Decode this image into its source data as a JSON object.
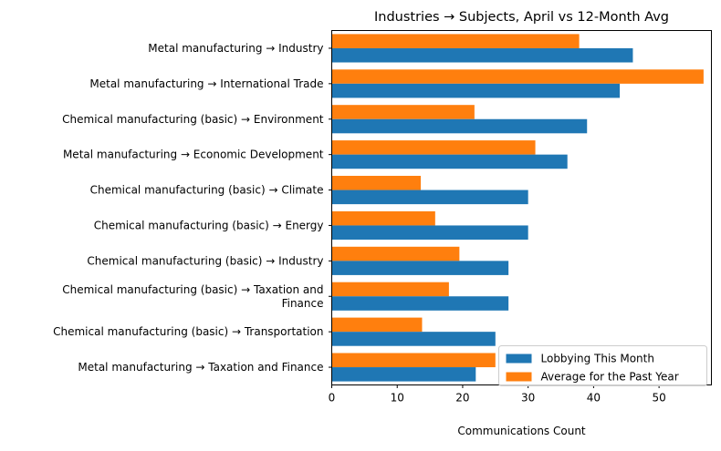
{
  "chart_data": {
    "type": "bar",
    "orientation": "horizontal",
    "title": "Industries → Subjects, April vs 12-Month Avg",
    "xlabel": "Communications Count",
    "ylabel": "",
    "xlim": [
      0,
      58
    ],
    "xticks": [
      0,
      10,
      20,
      30,
      40,
      50
    ],
    "grid": false,
    "legend_position": "lower right",
    "categories": [
      [
        "Metal manufacturing → Industry"
      ],
      [
        "Metal manufacturing → International Trade"
      ],
      [
        "Chemical manufacturing (basic) → Environment"
      ],
      [
        "Metal manufacturing → Economic Development"
      ],
      [
        "Chemical manufacturing (basic) → Climate"
      ],
      [
        "Chemical manufacturing (basic) → Energy"
      ],
      [
        "Chemical manufacturing (basic) → Industry"
      ],
      [
        "Chemical manufacturing (basic) → Taxation and",
        "Finance"
      ],
      [
        "Chemical manufacturing (basic) → Transportation"
      ],
      [
        "Metal manufacturing → Taxation and Finance"
      ]
    ],
    "series": [
      {
        "name": "Lobbying This Month",
        "color": "#1f77b4",
        "values": [
          46,
          44,
          39,
          36,
          30,
          30,
          27,
          27,
          25,
          22
        ]
      },
      {
        "name": "Average for the Past Year",
        "color": "#ff7f0e",
        "values": [
          37.8,
          56.8,
          21.8,
          31.1,
          13.6,
          15.8,
          19.5,
          17.9,
          13.8,
          25.0
        ]
      }
    ]
  }
}
